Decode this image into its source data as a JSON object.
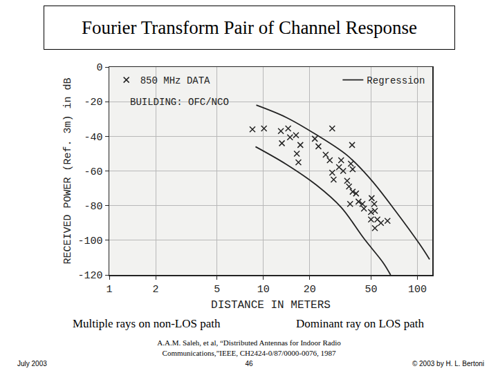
{
  "slide": {
    "title": "Fourier Transform Pair of Channel Response",
    "captions": [
      "Multiple rays on non-LOS path",
      "Dominant ray on LOS path"
    ],
    "citation": [
      "A.A.M. Saleh, et al, “Distributed Antennas for Indoor Radio",
      "Communications,”IEEE, CH2424-0/87/0000-0076, 1987"
    ],
    "footer": {
      "left": "July 2003",
      "center": "46",
      "right": "© 2003 by H. L. Bertoni"
    }
  },
  "chart_data": {
    "type": "scatter",
    "x_label": "DISTANCE IN METERS",
    "y_label": "RECEIVED POWER (Ref. 3m) in dB",
    "annotations": [
      "BUILDING: OFC/NCO"
    ],
    "log": "x",
    "grid": true,
    "legend": "upper right",
    "xlim": [
      1,
      125
    ],
    "xticks": [
      1,
      2,
      5,
      10,
      20,
      50,
      100
    ],
    "ylim": [
      -120,
      0
    ],
    "yticks": [
      -120,
      -100,
      -80,
      -60,
      -40,
      -20,
      0
    ],
    "series": [
      {
        "name": "850 MHz DATA",
        "type": "scatter",
        "marker": "x",
        "color": "#222222",
        "x": [
          8.5,
          10.1,
          13,
          14.5,
          14.9,
          13.2,
          16.3,
          16.5,
          16.9,
          17.4,
          21.6,
          22.8,
          25.4,
          28,
          27,
          31,
          32,
          33,
          28,
          28.6,
          37,
          35,
          36,
          38,
          38,
          40,
          41.5,
          36.6,
          44,
          45,
          50.5,
          52.5,
          50,
          50,
          53,
          55,
          53,
          58,
          64,
          37.7
        ],
        "values": [
          -36,
          -35.5,
          -37,
          -35.5,
          -40.6,
          -44,
          -39.4,
          -50,
          -55,
          -45,
          -41.4,
          -45.8,
          -50.6,
          -35.5,
          -53.8,
          -57.8,
          -53.8,
          -60,
          -61,
          -65,
          -55.8,
          -65.7,
          -69,
          -59,
          -72,
          -73,
          -77.7,
          -79,
          -79,
          -81.7,
          -75.7,
          -79,
          -83.7,
          -88,
          -83,
          -88,
          -93,
          -90,
          -88.8,
          -45
        ]
      },
      {
        "name": "Regression",
        "type": "line",
        "line_style": "solid",
        "color": "#222222",
        "x": [
          9,
          14,
          22,
          35,
          50,
          72,
          103,
          120
        ],
        "values": [
          -22,
          -29,
          -39,
          -51,
          -65,
          -83,
          -102,
          -111
        ]
      },
      {
        "name": "Regression",
        "type": "line",
        "line_style": "solid",
        "color": "#222222",
        "x": [
          8.9,
          14,
          22,
          32,
          45,
          60,
          67
        ],
        "values": [
          -46,
          -56,
          -68,
          -81,
          -99,
          -113,
          -120
        ]
      }
    ]
  }
}
